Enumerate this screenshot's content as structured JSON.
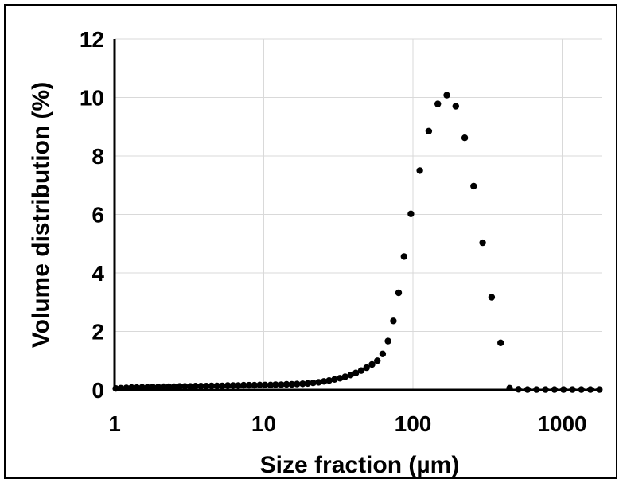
{
  "chart_data": {
    "type": "scatter",
    "title": "",
    "xlabel": "Size fraction (µm)",
    "ylabel": "Volume distribution (%)",
    "x_scale": "log",
    "xlim": [
      1,
      2000
    ],
    "ylim": [
      0,
      12
    ],
    "x_ticks": [
      "1",
      "10",
      "100",
      "1000"
    ],
    "y_ticks": [
      "0",
      "2",
      "4",
      "6",
      "8",
      "10",
      "12"
    ],
    "grid": true,
    "legend": "none",
    "marker_color": "#000000",
    "series": [
      {
        "x": [
          1.02,
          1.1,
          1.2,
          1.3,
          1.41,
          1.53,
          1.66,
          1.8,
          1.96,
          2.13,
          2.31,
          2.51,
          2.73,
          2.96,
          3.22,
          3.49,
          3.79,
          4.12,
          4.47,
          4.86,
          5.27,
          5.73,
          6.22,
          6.75,
          7.33,
          7.97,
          8.65,
          9.4,
          10.2,
          11.1,
          12.0,
          13.1,
          14.2,
          15.4,
          16.7,
          18.2,
          19.7,
          21.4,
          23.3,
          25.3,
          27.4,
          29.8,
          32.4,
          35.1,
          38.2,
          41.4,
          45.0,
          48.9,
          53.1,
          57.7,
          62.6,
          68.0,
          73.9,
          80.2,
          87.1,
          96.8,
          111.2,
          127.7,
          146.7,
          168.5,
          193.5,
          222.3,
          255.3,
          293.3,
          336.8,
          386.9,
          444.4,
          510.4,
          586.3,
          673.5,
          773.6,
          888.6,
          1020.7,
          1172.4,
          1346.7,
          1546.9,
          1776.9
        ],
        "y": [
          0.05,
          0.06,
          0.07,
          0.08,
          0.08,
          0.09,
          0.09,
          0.1,
          0.1,
          0.11,
          0.11,
          0.11,
          0.12,
          0.12,
          0.12,
          0.13,
          0.13,
          0.13,
          0.14,
          0.14,
          0.14,
          0.15,
          0.15,
          0.15,
          0.16,
          0.16,
          0.16,
          0.17,
          0.17,
          0.17,
          0.18,
          0.18,
          0.19,
          0.19,
          0.2,
          0.21,
          0.22,
          0.24,
          0.26,
          0.29,
          0.32,
          0.36,
          0.4,
          0.45,
          0.51,
          0.58,
          0.66,
          0.76,
          0.87,
          1.0,
          1.23,
          1.67,
          2.36,
          3.32,
          4.56,
          6.02,
          7.5,
          8.85,
          9.78,
          10.08,
          9.7,
          8.62,
          6.97,
          5.03,
          3.17,
          1.61,
          0.06,
          0.02,
          0.01,
          0.01,
          0.01,
          0.01,
          0.01,
          0.01,
          0.01,
          0.01,
          0.01
        ]
      }
    ]
  }
}
